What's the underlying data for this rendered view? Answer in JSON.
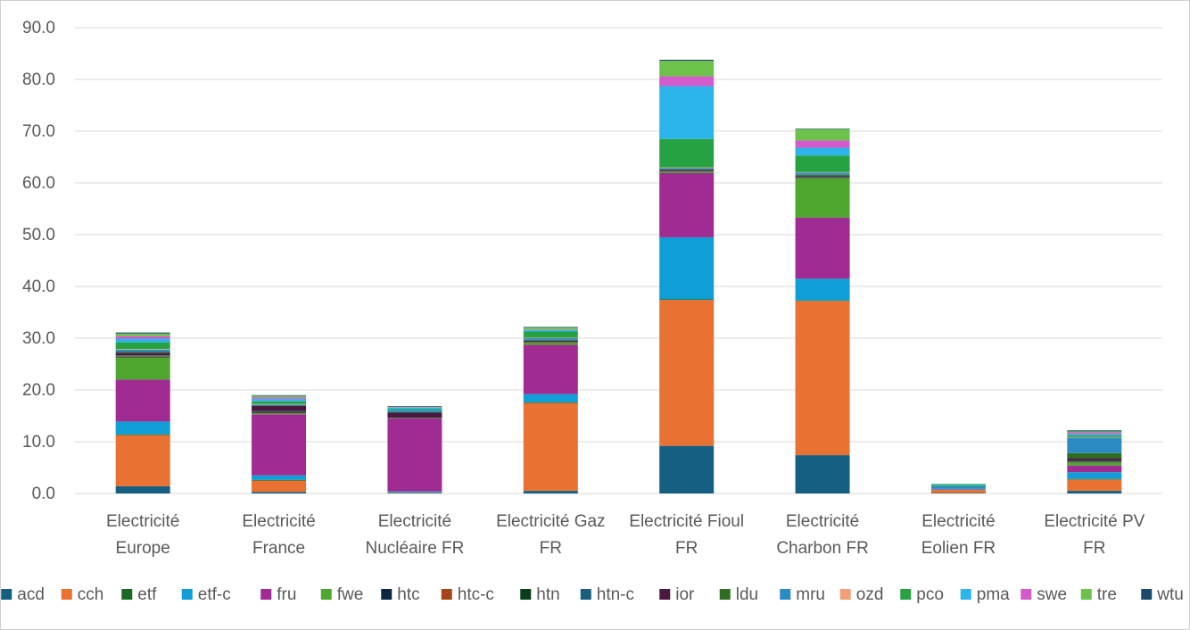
{
  "chart_data": {
    "type": "bar",
    "stacked": true,
    "title": "",
    "xlabel": "",
    "ylabel": "",
    "ylim": [
      0,
      90
    ],
    "yticks": [
      "0.0",
      "10.0",
      "20.0",
      "30.0",
      "40.0",
      "50.0",
      "60.0",
      "70.0",
      "80.0",
      "90.0"
    ],
    "grid": true,
    "legend_position": "bottom",
    "categories": [
      [
        "Electricité",
        "Europe"
      ],
      [
        "Electricité",
        "France"
      ],
      [
        "Electricité",
        "Nucléaire FR"
      ],
      [
        "Electricité Gaz",
        "FR"
      ],
      [
        "Electricité Fioul",
        "FR"
      ],
      [
        "Electricité",
        "Charbon FR"
      ],
      [
        "Electricité",
        "Eolien FR"
      ],
      [
        "Electricité PV",
        "FR"
      ]
    ],
    "series": [
      {
        "name": "acd",
        "color": "#156082",
        "values": [
          1.4,
          0.3,
          0.1,
          0.5,
          9.2,
          7.4,
          0.1,
          0.5
        ]
      },
      {
        "name": "cch",
        "color": "#E97132",
        "values": [
          9.9,
          2.2,
          0.1,
          17.0,
          28.2,
          29.8,
          0.6,
          2.2
        ]
      },
      {
        "name": "etf",
        "color": "#196B24",
        "values": [
          0.1,
          0.1,
          0.0,
          0.1,
          0.1,
          0.1,
          0.0,
          0.1
        ]
      },
      {
        "name": "etf-c",
        "color": "#0F9ED5",
        "values": [
          2.5,
          0.9,
          0.2,
          1.6,
          12.0,
          4.2,
          0.1,
          1.3
        ]
      },
      {
        "name": "fru",
        "color": "#A02B93",
        "values": [
          8.1,
          11.8,
          14.1,
          9.5,
          12.4,
          11.8,
          0.1,
          1.3
        ]
      },
      {
        "name": "fwe",
        "color": "#4EA72E",
        "values": [
          4.3,
          0.2,
          0.1,
          0.4,
          0.2,
          7.6,
          0.0,
          0.6
        ]
      },
      {
        "name": "htc",
        "color": "#0E2841",
        "values": [
          0.1,
          0.1,
          0.0,
          0.1,
          0.1,
          0.1,
          0.0,
          0.1
        ]
      },
      {
        "name": "htc-c",
        "color": "#A5441A",
        "values": [
          0.1,
          0.1,
          0.0,
          0.1,
          0.1,
          0.1,
          0.0,
          0.1
        ]
      },
      {
        "name": "htn",
        "color": "#0A3E1A",
        "values": [
          0.1,
          0.1,
          0.0,
          0.1,
          0.1,
          0.1,
          0.0,
          0.1
        ]
      },
      {
        "name": "htn-c",
        "color": "#1A5E7E",
        "values": [
          0.1,
          0.1,
          0.0,
          0.1,
          0.1,
          0.1,
          0.0,
          0.1
        ]
      },
      {
        "name": "ior",
        "color": "#4A1942",
        "values": [
          0.5,
          1.0,
          1.0,
          0.1,
          0.1,
          0.1,
          0.0,
          0.4
        ]
      },
      {
        "name": "ldu",
        "color": "#2E6E22",
        "values": [
          0.2,
          0.1,
          0.1,
          0.1,
          0.1,
          0.2,
          0.0,
          1.0
        ]
      },
      {
        "name": "mru",
        "color": "#2B8CC4",
        "values": [
          0.4,
          0.2,
          0.4,
          0.3,
          0.2,
          0.4,
          0.5,
          3.0
        ]
      },
      {
        "name": "ozd",
        "color": "#F1A078",
        "values": [
          0.1,
          0.1,
          0.0,
          0.1,
          0.1,
          0.1,
          0.0,
          0.1
        ]
      },
      {
        "name": "pco",
        "color": "#27A243",
        "values": [
          1.3,
          0.5,
          0.2,
          1.2,
          5.5,
          3.2,
          0.2,
          0.3
        ]
      },
      {
        "name": "pma",
        "color": "#2BB5EA",
        "values": [
          0.7,
          0.5,
          0.3,
          0.3,
          10.2,
          1.5,
          0.2,
          0.3
        ]
      },
      {
        "name": "swe",
        "color": "#D35BCB",
        "values": [
          0.5,
          0.3,
          0.1,
          0.1,
          1.9,
          1.4,
          0.0,
          0.3
        ]
      },
      {
        "name": "tre",
        "color": "#6CC24A",
        "values": [
          0.5,
          0.3,
          0.1,
          0.4,
          3.0,
          2.2,
          0.1,
          0.2
        ]
      },
      {
        "name": "wtu",
        "color": "#1A4B6E",
        "values": [
          0.2,
          0.1,
          0.1,
          0.1,
          0.2,
          0.1,
          0.0,
          0.2
        ]
      }
    ]
  }
}
